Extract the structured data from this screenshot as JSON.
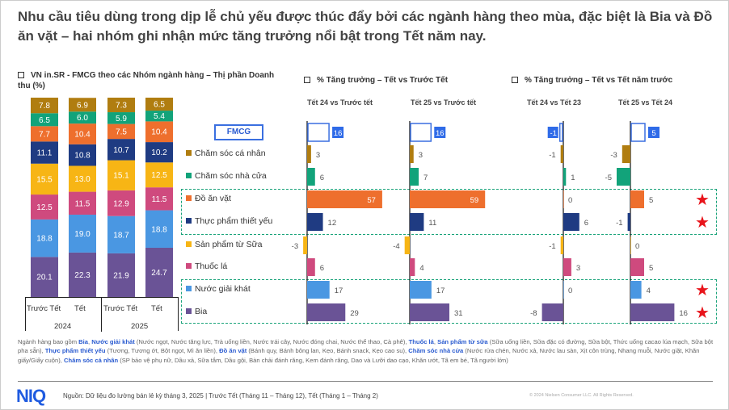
{
  "title": "Nhu cầu tiêu dùng trong dịp lễ chủ yếu được thúc đẩy bởi các ngành hàng theo mùa, đặc biệt là Bia và Đồ ăn vặt – hai nhóm ghi nhận mức tăng trưởng nổi bật trong Tết năm nay.",
  "sections": {
    "share": "VN in.SR - FMCG theo các Nhóm ngành hàng  – Thị phần Doanh thu (%)",
    "growth_pre": "% Tăng trưởng – Tết vs Trước Tết",
    "growth_yoy": "% Tăng trưởng – Tết vs Tết năm trước"
  },
  "fmcg_label": "FMCG",
  "xaxis": {
    "periods": [
      "Trước Tết",
      "Tết",
      "Trước Tết",
      "Tết"
    ],
    "years": [
      "2024",
      "2025"
    ]
  },
  "chart_data": [
    {
      "type": "bar",
      "stacked": true,
      "title": "VN in.SR - FMCG theo các Nhóm ngành hàng – Thị phần Doanh thu (%)",
      "categories": [
        "Trước Tết 2024",
        "Tết 2024",
        "Trước Tết 2025",
        "Tết 2025"
      ],
      "series": [
        {
          "name": "Bia",
          "values": [
            20.1,
            22.3,
            21.9,
            24.7
          ]
        },
        {
          "name": "Nước giải khát",
          "values": [
            18.8,
            19.0,
            18.7,
            18.8
          ]
        },
        {
          "name": "Thuốc lá",
          "values": [
            12.5,
            11.5,
            12.9,
            11.5
          ]
        },
        {
          "name": "Sản phẩm từ Sữa",
          "values": [
            15.5,
            13.0,
            15.1,
            12.5
          ]
        },
        {
          "name": "Thực phẩm thiết yếu",
          "values": [
            11.1,
            10.8,
            10.7,
            10.2
          ]
        },
        {
          "name": "Đồ ăn vặt",
          "values": [
            7.7,
            10.4,
            7.5,
            10.4
          ]
        },
        {
          "name": "Chăm sóc nhà cửa",
          "values": [
            6.5,
            6.0,
            5.9,
            5.4
          ]
        },
        {
          "name": "Chăm sóc cá nhân",
          "values": [
            7.8,
            6.9,
            7.3,
            6.5
          ]
        }
      ],
      "ylim": [
        0,
        100
      ]
    },
    {
      "type": "bar",
      "orientation": "horizontal",
      "categories": [
        "FMCG",
        "Chăm sóc cá nhân",
        "Chăm sóc nhà cửa",
        "Đồ ăn vặt",
        "Thực phẩm thiết yếu",
        "Sản phẩm từ Sữa",
        "Thuốc lá",
        "Nước giải khát",
        "Bia"
      ],
      "series": [
        {
          "name": "Tết 24 vs Trước tết",
          "values": [
            16,
            3,
            6,
            57,
            12,
            -3,
            6,
            17,
            29
          ]
        },
        {
          "name": "Tết 25 vs Trước tết",
          "values": [
            16,
            3,
            7,
            59,
            11,
            -4,
            4,
            17,
            31
          ]
        },
        {
          "name": "Tết 24 vs Tết 23",
          "values": [
            -1,
            -1,
            1,
            0,
            6,
            -1,
            3,
            0,
            -8
          ]
        },
        {
          "name": "Tết 25 vs Tết 24",
          "values": [
            5,
            -3,
            -5,
            5,
            -1,
            0,
            5,
            4,
            16
          ]
        }
      ],
      "highlighted": [
        "Đồ ăn vặt",
        "Thực phẩm thiết yếu",
        "Nước giải khát",
        "Bia"
      ]
    }
  ],
  "colors": {
    "Chăm sóc cá nhân": "#b07d10",
    "Chăm sóc nhà cửa": "#12a37a",
    "Đồ ăn vặt": "#ee6f2d",
    "Thực phẩm thiết yếu": "#1f3b82",
    "Sản phẩm từ Sữa": "#f7b515",
    "Thuốc lá": "#cf4a7e",
    "Nước giải khát": "#4a97e2",
    "Bia": "#6a5396",
    "FMCG": "#3a6fe0"
  },
  "notes": [
    [
      "Ngành hàng bao gồm ",
      0
    ],
    [
      "Bia",
      1
    ],
    [
      ", ",
      0
    ],
    [
      "Nước giải khát",
      1
    ],
    [
      " (Nước ngọt, Nước tăng lực, Trà uống liền, Nước trái cây, Nước đóng chai, Nước thể thao, Cà phê), ",
      0
    ],
    [
      "Thuốc lá",
      1
    ],
    [
      ", ",
      0
    ],
    [
      "Sản phẩm từ sữa",
      1
    ],
    [
      " (Sữa uống liền, Sữa đặc có đường, Sữa bột, Thức uống cacao lúa mạch, Sữa bột pha sẵn), ",
      0
    ],
    [
      "Thực phẩm thiết yếu",
      1
    ],
    [
      " (Tương, Tương ớt, Bột ngọt, Mì ăn liền), ",
      0
    ],
    [
      "Đồ ăn vặt",
      1
    ],
    [
      " (Bánh quy, Bánh bông lan, Kẹo, Bánh snack, Kẹo cao su), ",
      0
    ],
    [
      "Chăm sóc nhà cửa",
      1
    ],
    [
      " (Nước rửa chén, Nước xả, Nước lau sàn, Xịt côn trùng, Nhang muỗi, Nước giặt, Khăn giấy/Giấy cuộn), ",
      0
    ],
    [
      "Chăm sóc cá nhân",
      1
    ],
    [
      " (SP bảo vệ phụ nữ, Dầu xả, Sữa tắm, Dầu gội, Bàn chải đánh răng, Kem đánh răng, Dao và Lưỡi dao cạo, Khăn ướt, Tã em bé, Tã người lớn)",
      0
    ]
  ],
  "footer": {
    "logo": "NIQ",
    "source": "Nguồn: Dữ liệu đo lường bán lẻ kỳ tháng 3, 2025 | Trước Tết (Tháng 11 – Tháng 12), Tết (Tháng 1 – Tháng 2)",
    "copyright": "© 2024 Nielsen Consumer LLC. All Rights Reserved."
  }
}
